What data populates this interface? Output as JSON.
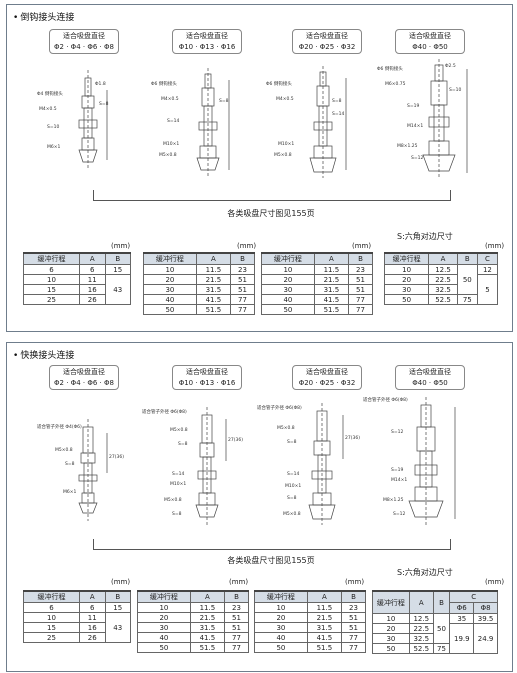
{
  "sections": [
    {
      "title": "倒钩接头连接",
      "size_labels": [
        {
          "line1": "适合吸盘直径",
          "line2": "Φ2 · Φ4 · Φ6 · Φ8"
        },
        {
          "line1": "适合吸盘直径",
          "line2": "Φ10 · Φ13 · Φ16"
        },
        {
          "line1": "适合吸盘直径",
          "line2": "Φ20 · Φ25 · Φ32"
        },
        {
          "line1": "适合吸盘直径",
          "line2": "Φ40 · Φ50"
        }
      ],
      "drawing_labels": [
        [
          "Φ4 倒钩接头",
          "Φ1.8",
          "M4×0.5",
          "S=10",
          "M6×1",
          "S=8"
        ],
        [
          "Φ6 倒钩接头",
          "M4×0.5",
          "S=14",
          "M10×1",
          "M5×0.8",
          "S=8"
        ],
        [
          "Φ6 倒钩接头",
          "M4×0.5",
          "S=14",
          "M10×1",
          "M5×0.8",
          "S=8"
        ],
        [
          "Φ6 倒钩接头",
          "Φ2.5",
          "M6×0.75",
          "S=10",
          "S=19",
          "M14×1",
          "M8×1.25",
          "S=12"
        ]
      ],
      "center_note": "各类吸盘尺寸图见155页",
      "hex_note": "S:六角对边尺寸",
      "unit": "(mm)",
      "tables": [
        {
          "headers": [
            "缓冲行程",
            "A",
            "B"
          ],
          "rows": [
            [
              "6",
              "6",
              "15"
            ],
            [
              "10",
              "11",
              ""
            ],
            [
              "15",
              "16",
              "43"
            ],
            [
              "25",
              "26",
              ""
            ]
          ]
        },
        {
          "headers": [
            "缓冲行程",
            "A",
            "B"
          ],
          "rows": [
            [
              "10",
              "11.5",
              "23"
            ],
            [
              "20",
              "21.5",
              "51"
            ],
            [
              "30",
              "31.5",
              "51"
            ],
            [
              "40",
              "41.5",
              "77"
            ],
            [
              "50",
              "51.5",
              "77"
            ]
          ]
        },
        {
          "headers": [
            "缓冲行程",
            "A",
            "B"
          ],
          "rows": [
            [
              "10",
              "11.5",
              "23"
            ],
            [
              "20",
              "21.5",
              "51"
            ],
            [
              "30",
              "31.5",
              "51"
            ],
            [
              "40",
              "41.5",
              "77"
            ],
            [
              "50",
              "51.5",
              "77"
            ]
          ]
        },
        {
          "headers": [
            "缓冲行程",
            "A",
            "B",
            "C"
          ],
          "rows": [
            [
              "10",
              "12.5",
              "",
              "12"
            ],
            [
              "20",
              "22.5",
              "50",
              ""
            ],
            [
              "30",
              "32.5",
              "",
              "5"
            ],
            [
              "50",
              "52.5",
              "75",
              ""
            ]
          ]
        }
      ]
    },
    {
      "title": "快换接头连接",
      "size_labels": [
        {
          "line1": "适合吸盘直径",
          "line2": "Φ2 · Φ4 · Φ6 · Φ8"
        },
        {
          "line1": "适合吸盘直径",
          "line2": "Φ10 · Φ13 · Φ16"
        },
        {
          "line1": "适合吸盘直径",
          "line2": "Φ20 · Φ25 · Φ32"
        },
        {
          "line1": "适合吸盘直径",
          "line2": "Φ40 · Φ50"
        }
      ],
      "drawing_labels": [
        [
          "适合管子外径 Φ4(Φ6)",
          "M5×0.8",
          "S=8",
          "M6×1",
          "27(36)"
        ],
        [
          "适合管子外径 Φ6(Φ8)",
          "M5×0.8",
          "S=8",
          "S=14",
          "M10×1",
          "M5×0.8",
          "S=8",
          "27(36)"
        ],
        [
          "适合管子外径 Φ6(Φ8)",
          "M5×0.8",
          "S=8",
          "S=14",
          "M10×1",
          "S=8",
          "M5×0.8",
          "27(36)"
        ],
        [
          "适合管子外径 Φ6(Φ8)",
          "S=12",
          "S=19",
          "M14×1",
          "M8×1.25",
          "S=12"
        ]
      ],
      "center_note": "各类吸盘尺寸图见155页",
      "hex_note": "S:六角对边尺寸",
      "unit": "(mm)",
      "tables": [
        {
          "headers": [
            "缓冲行程",
            "A",
            "B"
          ],
          "rows": [
            [
              "6",
              "6",
              "15"
            ],
            [
              "10",
              "11",
              ""
            ],
            [
              "15",
              "16",
              "43"
            ],
            [
              "25",
              "26",
              ""
            ]
          ]
        },
        {
          "headers": [
            "缓冲行程",
            "A",
            "B"
          ],
          "rows": [
            [
              "10",
              "11.5",
              "23"
            ],
            [
              "20",
              "21.5",
              "51"
            ],
            [
              "30",
              "31.5",
              "51"
            ],
            [
              "40",
              "41.5",
              "77"
            ],
            [
              "50",
              "51.5",
              "77"
            ]
          ]
        },
        {
          "headers": [
            "缓冲行程",
            "A",
            "B"
          ],
          "rows": [
            [
              "10",
              "11.5",
              "23"
            ],
            [
              "20",
              "21.5",
              "51"
            ],
            [
              "30",
              "31.5",
              "51"
            ],
            [
              "40",
              "41.5",
              "77"
            ],
            [
              "50",
              "51.5",
              "77"
            ]
          ]
        },
        {
          "headers": [
            "缓冲行程",
            "A",
            "B",
            "C"
          ],
          "subheaders": [
            "Φ6",
            "Φ8"
          ],
          "rows": [
            [
              "10",
              "12.5",
              "",
              "35",
              "39.5"
            ],
            [
              "20",
              "22.5",
              "50",
              "",
              ""
            ],
            [
              "30",
              "32.5",
              "",
              "19.9",
              "24.9"
            ],
            [
              "50",
              "52.5",
              "75",
              "",
              ""
            ]
          ]
        }
      ]
    }
  ]
}
